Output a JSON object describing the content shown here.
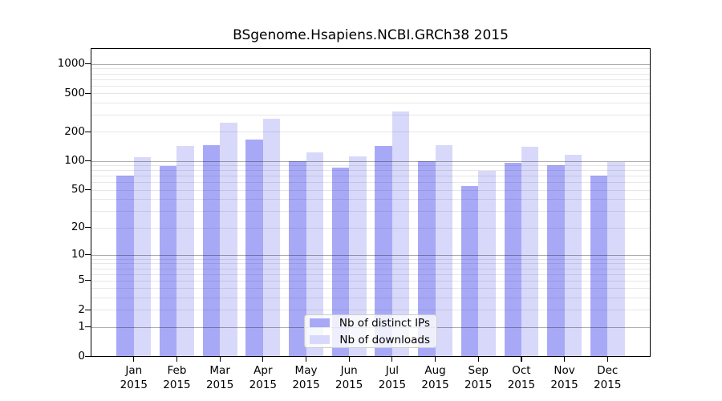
{
  "title": "BSgenome.Hsapiens.NCBI.GRCh38 2015",
  "chart_data": {
    "type": "bar",
    "title": "BSgenome.Hsapiens.NCBI.GRCh38 2015",
    "categories": [
      "Jan",
      "Feb",
      "Mar",
      "Apr",
      "May",
      "Jun",
      "Jul",
      "Aug",
      "Sep",
      "Oct",
      "Nov",
      "Dec"
    ],
    "x_year": "2015",
    "series": [
      {
        "name": "Nb of distinct IPs",
        "color": "#a8a9f6",
        "values": [
          70,
          89,
          145,
          168,
          100,
          86,
          142,
          100,
          55,
          95,
          91,
          70
        ]
      },
      {
        "name": "Nb of downloads",
        "color": "#d8d9fa",
        "values": [
          110,
          142,
          247,
          273,
          122,
          112,
          326,
          147,
          79,
          140,
          115,
          97
        ]
      }
    ],
    "yscale": "log1p",
    "yticks": [
      0,
      1,
      2,
      5,
      10,
      20,
      50,
      100,
      200,
      500,
      1000
    ],
    "ylim": [
      0,
      1460
    ],
    "grid": true,
    "grid_major_values": [
      1,
      10,
      100,
      1000
    ],
    "legend_position": "bottom-center",
    "colors": {
      "bar_dark": "#a8a9f6",
      "bar_light": "#d8d9fa",
      "axis": "#000000",
      "background": "#ffffff"
    }
  }
}
